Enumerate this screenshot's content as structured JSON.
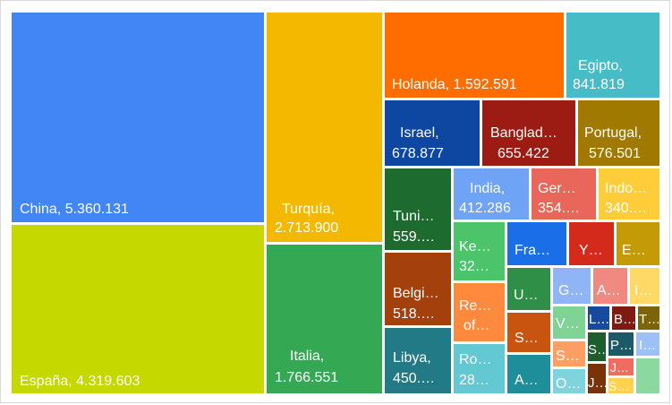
{
  "chart_data": {
    "type": "treemap",
    "nodes": [
      {
        "label": "China, 5.360.131",
        "name": "China",
        "value": 5360131,
        "color": "#4285f4"
      },
      {
        "label": "España, 4.319.603",
        "name": "España",
        "value": 4319603,
        "color": "#c5d800"
      },
      {
        "label": "Turquía, 2.713.900",
        "name": "Turquía",
        "value": 2713900,
        "color": "#f5b800"
      },
      {
        "label": "Italia, 1.766.551",
        "name": "Italia",
        "value": 1766551,
        "color": "#34a853"
      },
      {
        "label": "Holanda, 1.592.591",
        "name": "Holanda",
        "value": 1592591,
        "color": "#ff6d00"
      },
      {
        "label": "Egipto, 841.819",
        "name": "Egipto",
        "value": 841819,
        "color": "#46bdc6"
      },
      {
        "label": "Israel, 678.877",
        "name": "Israel",
        "value": 678877,
        "color": "#0d47a1"
      },
      {
        "label": "Banglad…, 655.422",
        "name": "Banglad…",
        "value": 655422,
        "color": "#9c1c14"
      },
      {
        "label": "Portugal, 576.501",
        "name": "Portugal",
        "value": 576501,
        "color": "#a07a00"
      },
      {
        "label": "Tuni…, 559.…",
        "name": "Tuni…",
        "value": null,
        "color": "#1e6b2f"
      },
      {
        "label": "India, 412.286",
        "name": "India",
        "value": 412286,
        "color": "#6ea3f5"
      },
      {
        "label": "Ger…, 354.…",
        "name": "Ger…",
        "value": null,
        "color": "#e8665a"
      },
      {
        "label": "Indo…, 340.…",
        "name": "Indo…",
        "value": null,
        "color": "#ffcd3a"
      },
      {
        "label": "Belgi…, 518.…",
        "name": "Belgi…",
        "value": null,
        "color": "#a3400b"
      },
      {
        "label": "Ke…, 32…",
        "name": "Ke…",
        "value": null,
        "color": "#4cc56a"
      },
      {
        "label": "Fra…",
        "name": "Fra…",
        "value": null,
        "color": "#1a6ee8"
      },
      {
        "label": "Y…",
        "name": "Y…",
        "value": null,
        "color": "#d42a1c"
      },
      {
        "label": "E…",
        "name": "E…",
        "value": null,
        "color": "#c49a06"
      },
      {
        "label": "Re… of…",
        "name": "Re… of…",
        "value": null,
        "color": "#ff8a3d"
      },
      {
        "label": "U…",
        "name": "U…",
        "value": null,
        "color": "#2f8f46"
      },
      {
        "label": "Libya, 450.…",
        "name": "Libya",
        "value": null,
        "color": "#227a86"
      },
      {
        "label": "S…",
        "name": "S…",
        "value": null,
        "color": "#c95410"
      },
      {
        "label": "Ro… 28…",
        "name": "Ro…",
        "value": null,
        "color": "#62c9d2"
      },
      {
        "label": "A…",
        "name": "A…",
        "value": null,
        "color": "#1d8e9a"
      },
      {
        "label": "G…",
        "name": "G…",
        "value": null,
        "color": "#8fb5f7"
      },
      {
        "label": "A…",
        "name": "A…",
        "value": null,
        "color": "#f08a80"
      },
      {
        "label": "I…",
        "name": "I…",
        "value": null,
        "color": "#ffd966"
      },
      {
        "label": "V…",
        "name": "V…",
        "value": null,
        "color": "#7fd495"
      },
      {
        "label": "L…",
        "name": "L…",
        "value": null,
        "color": "#164a9e"
      },
      {
        "label": "B…",
        "name": "B…",
        "value": null,
        "color": "#7e1a12"
      },
      {
        "label": "T…",
        "name": "T…",
        "value": null,
        "color": "#7d6409"
      },
      {
        "label": "S…",
        "name": "S…",
        "value": null,
        "color": "#ff9f64"
      },
      {
        "label": "S…",
        "name": "S…",
        "value": null,
        "color": "#1c5e2c"
      },
      {
        "label": "P…",
        "name": "P…",
        "value": null,
        "color": "#1b5a66"
      },
      {
        "label": "I…",
        "name": "I…",
        "value": null,
        "color": "#9ec0f8"
      },
      {
        "label": "J…",
        "name": "J…",
        "value": null,
        "color": "#ef6c61"
      },
      {
        "label": "O…",
        "name": "O…",
        "value": null,
        "color": "#7dd4dc"
      },
      {
        "label": "J…",
        "name": "J…",
        "value": null,
        "color": "#7a3308"
      },
      {
        "label": "S…",
        "name": "S…",
        "value": null,
        "color": "#ffd24d"
      },
      {
        "label": "",
        "name": "",
        "value": null,
        "color": "#8cd9a0"
      }
    ]
  }
}
